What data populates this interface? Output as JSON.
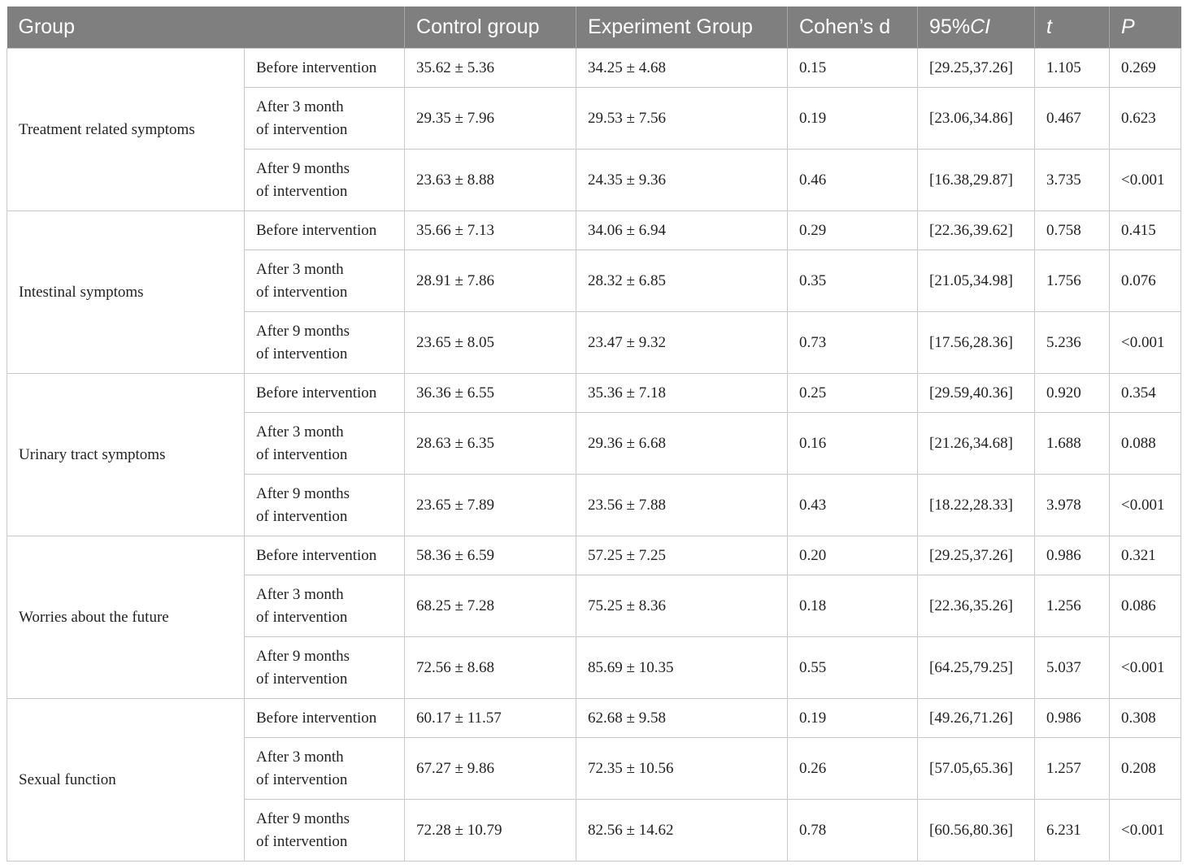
{
  "headers": {
    "group": "Group",
    "control": "Control group",
    "experiment": "Experiment Group",
    "cohens_d": "Cohen’s d",
    "ci": "95%CI",
    "t": "t",
    "p": "P"
  },
  "groups": [
    {
      "name": "Treatment related symptoms",
      "rows": [
        {
          "stage_line1": "Before intervention",
          "stage_line2": "",
          "control": "35.62 ± 5.36",
          "experiment": "34.25 ± 4.68",
          "d": "0.15",
          "ci": "[29.25,37.26]",
          "t": "1.105",
          "p": "0.269"
        },
        {
          "stage_line1": "After 3 month",
          "stage_line2": "of intervention",
          "control": "29.35 ± 7.96",
          "experiment": "29.53 ± 7.56",
          "d": "0.19",
          "ci": "[23.06,34.86]",
          "t": "0.467",
          "p": "0.623"
        },
        {
          "stage_line1": "After 9 months",
          "stage_line2": "of intervention",
          "control": "23.63 ± 8.88",
          "experiment": "24.35 ± 9.36",
          "d": "0.46",
          "ci": "[16.38,29.87]",
          "t": "3.735",
          "p": "<0.001"
        }
      ]
    },
    {
      "name": "Intestinal symptoms",
      "rows": [
        {
          "stage_line1": "Before intervention",
          "stage_line2": "",
          "control": "35.66 ± 7.13",
          "experiment": "34.06 ± 6.94",
          "d": "0.29",
          "ci": "[22.36,39.62]",
          "t": "0.758",
          "p": "0.415"
        },
        {
          "stage_line1": "After 3 month",
          "stage_line2": "of intervention",
          "control": "28.91 ± 7.86",
          "experiment": "28.32 ± 6.85",
          "d": "0.35",
          "ci": "[21.05,34.98]",
          "t": "1.756",
          "p": "0.076"
        },
        {
          "stage_line1": "After 9 months",
          "stage_line2": "of intervention",
          "control": "23.65 ± 8.05",
          "experiment": "23.47 ± 9.32",
          "d": "0.73",
          "ci": "[17.56,28.36]",
          "t": "5.236",
          "p": "<0.001"
        }
      ]
    },
    {
      "name": "Urinary tract symptoms",
      "rows": [
        {
          "stage_line1": "Before intervention",
          "stage_line2": "",
          "control": "36.36 ± 6.55",
          "experiment": "35.36 ± 7.18",
          "d": "0.25",
          "ci": "[29.59,40.36]",
          "t": "0.920",
          "p": "0.354"
        },
        {
          "stage_line1": "After 3 month",
          "stage_line2": "of intervention",
          "control": "28.63 ± 6.35",
          "experiment": "29.36 ± 6.68",
          "d": "0.16",
          "ci": "[21.26,34.68]",
          "t": "1.688",
          "p": "0.088"
        },
        {
          "stage_line1": "After 9 months",
          "stage_line2": "of intervention",
          "control": "23.65 ± 7.89",
          "experiment": "23.56 ± 7.88",
          "d": "0.43",
          "ci": "[18.22,28.33]",
          "t": "3.978",
          "p": "<0.001"
        }
      ]
    },
    {
      "name": "Worries about the future",
      "rows": [
        {
          "stage_line1": "Before intervention",
          "stage_line2": "",
          "control": "58.36 ± 6.59",
          "experiment": "57.25 ± 7.25",
          "d": "0.20",
          "ci": "[29.25,37.26]",
          "t": "0.986",
          "p": "0.321"
        },
        {
          "stage_line1": "After 3 month",
          "stage_line2": "of intervention",
          "control": "68.25 ± 7.28",
          "experiment": "75.25 ± 8.36",
          "d": "0.18",
          "ci": "[22.36,35.26]",
          "t": "1.256",
          "p": "0.086"
        },
        {
          "stage_line1": "After 9 months",
          "stage_line2": "of intervention",
          "control": "72.56 ± 8.68",
          "experiment": "85.69 ± 10.35",
          "d": "0.55",
          "ci": "[64.25,79.25]",
          "t": "5.037",
          "p": "<0.001"
        }
      ]
    },
    {
      "name": "Sexual function",
      "rows": [
        {
          "stage_line1": "Before intervention",
          "stage_line2": "",
          "control": "60.17 ± 11.57",
          "experiment": "62.68 ± 9.58",
          "d": "0.19",
          "ci": "[49.26,71.26]",
          "t": "0.986",
          "p": "0.308"
        },
        {
          "stage_line1": "After 3 month",
          "stage_line2": "of intervention",
          "control": "67.27 ± 9.86",
          "experiment": "72.35 ± 10.56",
          "d": "0.26",
          "ci": "[57.05,65.36]",
          "t": "1.257",
          "p": "0.208"
        },
        {
          "stage_line1": "After 9 months",
          "stage_line2": "of intervention",
          "control": "72.28 ± 10.79",
          "experiment": "82.56 ± 14.62",
          "d": "0.78",
          "ci": "[60.56,80.36]",
          "t": "6.231",
          "p": "<0.001"
        }
      ]
    }
  ],
  "colors": {
    "header_bg": "#7f7f7f",
    "header_text": "#ffffff",
    "grid": "#c8c8c8",
    "body_text": "#222222"
  }
}
